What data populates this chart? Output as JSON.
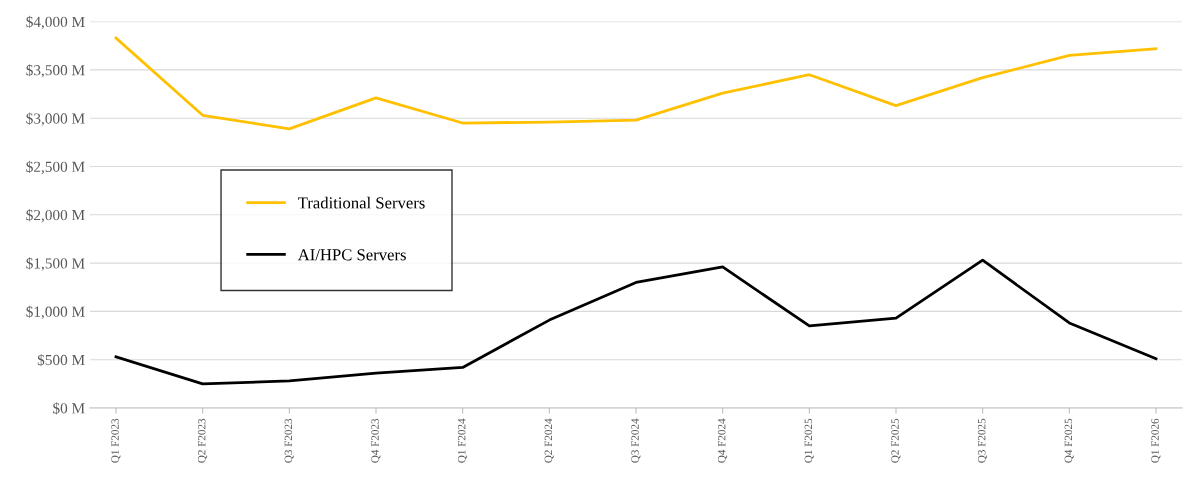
{
  "chart_data": {
    "type": "line",
    "categories": [
      "Q1 F2023",
      "Q2 F2023",
      "Q3 F2023",
      "Q4 F2023",
      "Q1 F2024",
      "Q2 F2024",
      "Q3 F2024",
      "Q4 F2024",
      "Q1 F2025",
      "Q2 F2025",
      "Q3 F2025",
      "Q4 F2025",
      "Q1 F2026"
    ],
    "series": [
      {
        "name": "Traditional Servers",
        "color": "#ffc000",
        "values": [
          3830,
          3030,
          2890,
          3210,
          2950,
          2960,
          2980,
          3260,
          3450,
          3130,
          3420,
          3650,
          3720
        ]
      },
      {
        "name": "AI/HPC Servers",
        "color": "#000000",
        "values": [
          530,
          250,
          280,
          360,
          420,
          910,
          1300,
          1460,
          850,
          930,
          1530,
          880,
          510
        ]
      }
    ],
    "ylim": [
      0,
      4000
    ],
    "yticks": [
      {
        "value": 0,
        "label": "$0 M"
      },
      {
        "value": 500,
        "label": "$500 M"
      },
      {
        "value": 1000,
        "label": "$1,000 M"
      },
      {
        "value": 1500,
        "label": "$1,500 M"
      },
      {
        "value": 2000,
        "label": "$2,000 M"
      },
      {
        "value": 2500,
        "label": "$2,500 M"
      },
      {
        "value": 3000,
        "label": "$3,000 M"
      },
      {
        "value": 3500,
        "label": "$3,500 M"
      },
      {
        "value": 4000,
        "label": "$4,000 M"
      }
    ],
    "grid": "y",
    "legend": "left",
    "marker": "none",
    "line_style": "solid"
  }
}
